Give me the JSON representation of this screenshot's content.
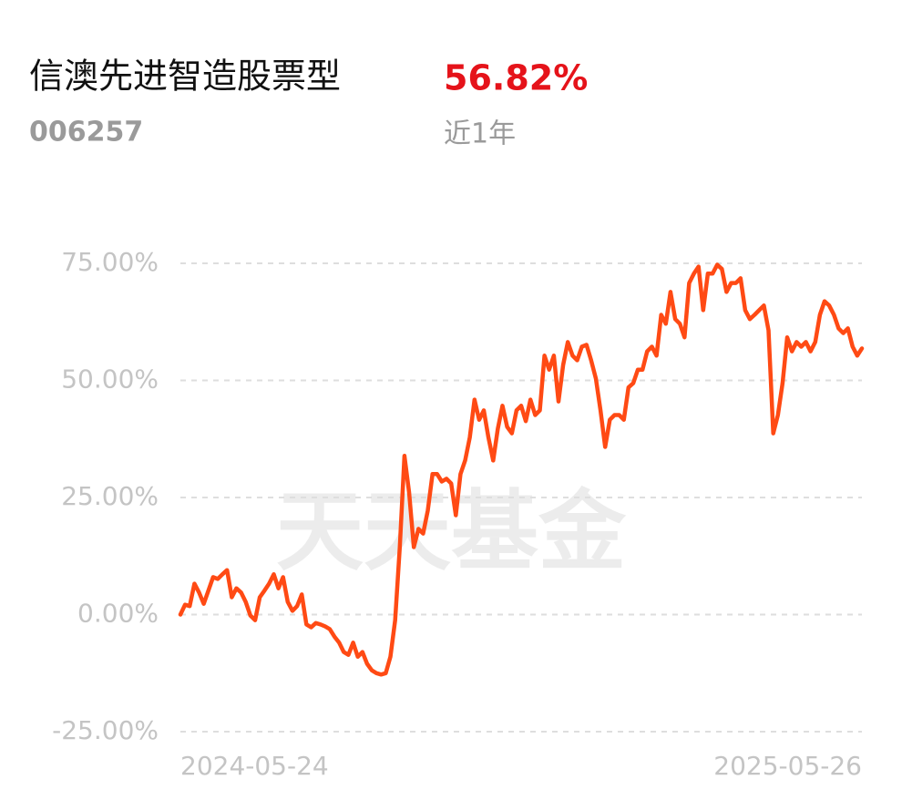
{
  "header": {
    "name": "信澳先进智造股票型",
    "return": "56.82%",
    "code": "006257",
    "period": "近1年"
  },
  "watermark": "天天基金",
  "chart_data": {
    "type": "line",
    "color": "#ff4a14",
    "categories": [
      "2024-05-24",
      null,
      null,
      null,
      null,
      null,
      null,
      null,
      null,
      null,
      null,
      null,
      null,
      null,
      null,
      null,
      null,
      null,
      null,
      null,
      null,
      null,
      null,
      null,
      null,
      null,
      null,
      null,
      null,
      null,
      null,
      null,
      null,
      null,
      null,
      null,
      null,
      null,
      null,
      null,
      null,
      null,
      null,
      null,
      null,
      null,
      null,
      null,
      null,
      null,
      null,
      null,
      null,
      null,
      null,
      null,
      null,
      null,
      null,
      null,
      null,
      null,
      null,
      null,
      null,
      null,
      null,
      null,
      null,
      null,
      null,
      null,
      null,
      null,
      null,
      null,
      null,
      null,
      null,
      null,
      null,
      null,
      null,
      null,
      null,
      null,
      null,
      null,
      null,
      null,
      null,
      null,
      null,
      null,
      null,
      null,
      null,
      null,
      null,
      null,
      null,
      null,
      null,
      null,
      null,
      null,
      null,
      null,
      null,
      null,
      null,
      null,
      null,
      null,
      null,
      null,
      null,
      null,
      null,
      null,
      null,
      null,
      null,
      null,
      null,
      null,
      null,
      null,
      null,
      null,
      null,
      null,
      null,
      null,
      null,
      null,
      null,
      null,
      null,
      null,
      null,
      null,
      null,
      null,
      null,
      null,
      "2025-05-26"
    ],
    "values": [
      0,
      2.1,
      1.8,
      6.6,
      4.7,
      2.3,
      5.1,
      8.0,
      7.6,
      8.6,
      9.5,
      3.7,
      5.6,
      4.7,
      2.7,
      -0.2,
      -1.2,
      3.7,
      5.1,
      6.6,
      8.6,
      5.6,
      8.0,
      2.7,
      0.8,
      1.8,
      4.3,
      -2.1,
      -2.7,
      -1.8,
      -2.1,
      -2.5,
      -3.1,
      -4.7,
      -6.0,
      -8.0,
      -8.6,
      -6.0,
      -9.0,
      -8.0,
      -10.5,
      -11.9,
      -12.5,
      -12.8,
      -12.5,
      -9.0,
      -1.2,
      14.4,
      33.9,
      26.1,
      14.4,
      18.3,
      17.3,
      22.2,
      30.0,
      30.0,
      28.4,
      29.0,
      28.0,
      21.2,
      30.0,
      32.9,
      37.8,
      45.9,
      41.6,
      43.6,
      37.8,
      32.9,
      39.7,
      44.6,
      40.1,
      38.7,
      43.6,
      44.6,
      41.3,
      45.9,
      42.6,
      43.6,
      55.3,
      52.3,
      55.3,
      45.5,
      53.3,
      58.2,
      55.3,
      54.3,
      57.2,
      57.6,
      54.3,
      50.4,
      43.6,
      35.8,
      41.6,
      42.6,
      42.6,
      41.6,
      48.5,
      49.4,
      52.3,
      52.3,
      56.2,
      57.2,
      55.3,
      64.0,
      62.1,
      68.9,
      63.1,
      62.1,
      59.2,
      70.8,
      72.8,
      74.3,
      65.0,
      72.8,
      72.8,
      74.7,
      73.8,
      68.9,
      70.8,
      70.8,
      71.8,
      65.0,
      63.1,
      64.0,
      65.0,
      66.0,
      60.7,
      38.7,
      42.6,
      49.4,
      59.2,
      56.2,
      58.2,
      57.2,
      58.2,
      56.2,
      58.2,
      64.0,
      66.9,
      66.0,
      64.0,
      61.1,
      60.1,
      61.1,
      57.2,
      55.3,
      56.82
    ],
    "ylim": [
      -25,
      75
    ],
    "yticks": [
      {
        "value": -25,
        "label": "-25.00%"
      },
      {
        "value": 0,
        "label": "0.00%"
      },
      {
        "value": 25,
        "label": "25.00%"
      },
      {
        "value": 50,
        "label": "50.00%"
      },
      {
        "value": 75,
        "label": "75.00%"
      }
    ],
    "grid": true
  }
}
